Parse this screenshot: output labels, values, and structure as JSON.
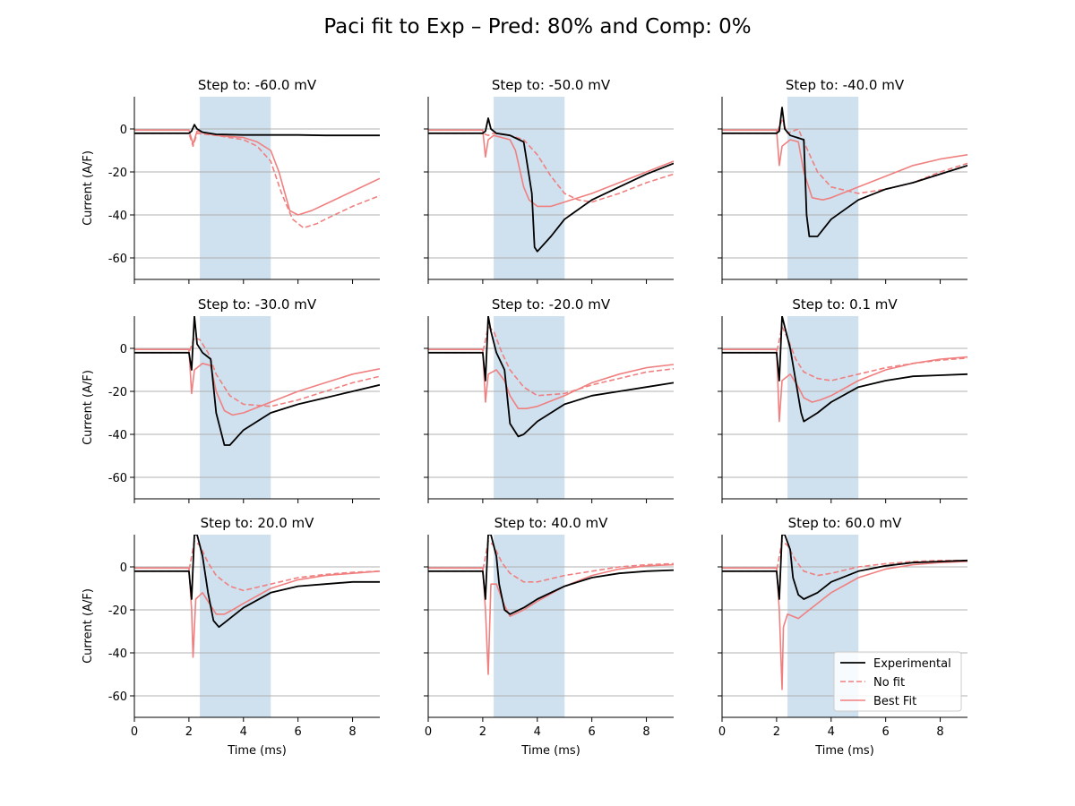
{
  "figure": {
    "title": "Paci fit to Exp – Pred: 80% and Comp: 0%"
  },
  "axes": {
    "xlabel": "Time (ms)",
    "ylabel": "Current (A/F)",
    "xlim": [
      0,
      9
    ],
    "ylim": [
      -70,
      15
    ],
    "xticks": [
      0,
      2,
      4,
      6,
      8
    ],
    "yticks": [
      0,
      -20,
      -40,
      -60
    ],
    "ygrid": true,
    "shaded_window_ms": [
      2.4,
      5.0
    ]
  },
  "legend": {
    "placement": "lower-right of last panel",
    "entries": [
      "Experimental",
      "No fit",
      "Best Fit"
    ]
  },
  "colors": {
    "experimental": "#000000",
    "model": "#f08080",
    "shade": "#cfe0ee",
    "grid": "#b0b0b0"
  },
  "chart_data": {
    "type": "line",
    "panels": [
      {
        "title": "Step to: -60.0 mV",
        "series": [
          {
            "name": "Experimental",
            "x": [
              0,
              2.0,
              2.1,
              2.2,
              2.3,
              2.5,
              3,
              4,
              5,
              6,
              7,
              8,
              9
            ],
            "y": [
              -2,
              -2,
              -1,
              2,
              0,
              -1.5,
              -2.5,
              -2.8,
              -2.8,
              -2.8,
              -3,
              -3,
              -3
            ]
          },
          {
            "name": "No fit",
            "x": [
              0,
              2.0,
              2.15,
              2.3,
              2.6,
              3,
              4,
              4.5,
              5,
              5.4,
              5.8,
              6.2,
              6.7,
              7,
              8,
              9
            ],
            "y": [
              -2,
              -2,
              -8,
              -2,
              -2.5,
              -3,
              -5,
              -8,
              -15,
              -30,
              -42,
              -46,
              -44,
              -42,
              -36,
              -31
            ]
          },
          {
            "name": "Best Fit",
            "x": [
              0,
              2.0,
              2.15,
              2.3,
              2.6,
              3,
              4,
              4.5,
              5,
              5.3,
              5.7,
              6,
              6.5,
              7,
              8,
              9
            ],
            "y": [
              -0.5,
              -0.5,
              -7,
              -1,
              -2,
              -3,
              -4,
              -6,
              -10,
              -20,
              -38,
              -40,
              -38,
              -35,
              -29,
              -23
            ]
          }
        ]
      },
      {
        "title": "Step to: -50.0 mV",
        "series": [
          {
            "name": "Experimental",
            "x": [
              0,
              2.0,
              2.1,
              2.2,
              2.3,
              2.5,
              3,
              3.5,
              3.8,
              3.9,
              4.0,
              4.5,
              5,
              6,
              7,
              8,
              9
            ],
            "y": [
              -2,
              -2,
              -1,
              5,
              0,
              -2,
              -3,
              -6,
              -30,
              -55,
              -57,
              -50,
              -42,
              -33,
              -27,
              -21,
              -16
            ]
          },
          {
            "name": "No fit",
            "x": [
              0,
              2.0,
              2.2,
              2.4,
              3,
              3.5,
              4,
              4.5,
              5,
              5.5,
              6,
              7,
              8,
              9
            ],
            "y": [
              -2,
              -2,
              -3,
              -2,
              -3,
              -5,
              -12,
              -22,
              -30,
              -33,
              -34,
              -30,
              -25,
              -21
            ]
          },
          {
            "name": "Best Fit",
            "x": [
              0,
              2.0,
              2.1,
              2.2,
              2.4,
              3,
              3.2,
              3.5,
              3.7,
              4,
              4.5,
              5,
              6,
              7,
              8,
              9
            ],
            "y": [
              -0.5,
              -0.5,
              -13,
              -5,
              -3,
              -5,
              -10,
              -27,
              -33,
              -36,
              -36,
              -34,
              -30,
              -25,
              -20,
              -15
            ]
          }
        ]
      },
      {
        "title": "Step to: -40.0 mV",
        "series": [
          {
            "name": "Experimental",
            "x": [
              0,
              2.0,
              2.1,
              2.2,
              2.3,
              2.5,
              3,
              3.1,
              3.2,
              3.5,
              4,
              5,
              6,
              7,
              8,
              9
            ],
            "y": [
              -2,
              -2,
              -1,
              10,
              0,
              -3,
              -5,
              -40,
              -50,
              -50,
              -42,
              -33,
              -28,
              -25,
              -21,
              -17
            ]
          },
          {
            "name": "No fit",
            "x": [
              0,
              2.0,
              2.2,
              2.4,
              2.8,
              3,
              3.5,
              4,
              5,
              6,
              7,
              8,
              9
            ],
            "y": [
              -2,
              -2,
              4,
              -2,
              0,
              -6,
              -20,
              -27,
              -30,
              -28,
              -25,
              -20,
              -16
            ]
          },
          {
            "name": "Best Fit",
            "x": [
              0,
              2.0,
              2.1,
              2.2,
              2.5,
              2.8,
              3,
              3.3,
              3.7,
              4,
              5,
              6,
              7,
              8,
              9
            ],
            "y": [
              -0.5,
              -0.5,
              -17,
              -8,
              -5,
              -6,
              -20,
              -32,
              -33,
              -32,
              -27,
              -22,
              -17,
              -14,
              -12
            ]
          }
        ]
      },
      {
        "title": "Step to: -30.0 mV",
        "series": [
          {
            "name": "Experimental",
            "x": [
              0,
              2.0,
              2.1,
              2.2,
              2.3,
              2.5,
              2.8,
              3,
              3.3,
              3.5,
              4,
              5,
              6,
              7,
              8,
              9
            ],
            "y": [
              -2,
              -2,
              -10,
              15,
              2,
              -2,
              -5,
              -30,
              -45,
              -45,
              -38,
              -30,
              -26,
              -23,
              -20,
              -17
            ]
          },
          {
            "name": "No fit",
            "x": [
              0,
              2.0,
              2.2,
              2.4,
              2.7,
              3,
              3.5,
              4,
              5,
              6,
              7,
              8,
              9
            ],
            "y": [
              -2,
              -2,
              5,
              4,
              -2,
              -12,
              -22,
              -26,
              -27,
              -24,
              -20,
              -16,
              -13
            ]
          },
          {
            "name": "Best Fit",
            "x": [
              0,
              2.0,
              2.1,
              2.2,
              2.5,
              2.8,
              3,
              3.3,
              3.6,
              4,
              5,
              6,
              7,
              8,
              9
            ],
            "y": [
              -0.5,
              -0.5,
              -21,
              -10,
              -7,
              -8,
              -20,
              -29,
              -31,
              -30,
              -25,
              -20,
              -16,
              -12,
              -9.5
            ]
          }
        ]
      },
      {
        "title": "Step to: -20.0 mV",
        "series": [
          {
            "name": "Experimental",
            "x": [
              0,
              2.0,
              2.1,
              2.2,
              2.3,
              2.5,
              2.8,
              3,
              3.3,
              3.5,
              4,
              5,
              6,
              7,
              8,
              9
            ],
            "y": [
              -2,
              -2,
              -15,
              15,
              8,
              -2,
              -10,
              -35,
              -41,
              -40,
              -34,
              -26,
              -22,
              -20,
              -18,
              -16
            ]
          },
          {
            "name": "No fit",
            "x": [
              0,
              2.0,
              2.2,
              2.4,
              2.7,
              3,
              3.5,
              4,
              5,
              6,
              7,
              8,
              9
            ],
            "y": [
              -2,
              -2,
              10,
              8,
              -2,
              -10,
              -18,
              -22,
              -21,
              -17,
              -14,
              -11,
              -9.5
            ]
          },
          {
            "name": "Best Fit",
            "x": [
              0,
              2.0,
              2.1,
              2.2,
              2.5,
              2.8,
              3,
              3.3,
              3.6,
              4,
              5,
              6,
              7,
              8,
              9
            ],
            "y": [
              -0.5,
              -0.5,
              -25,
              -12,
              -10,
              -15,
              -22,
              -28,
              -28,
              -27,
              -22,
              -16,
              -12,
              -9,
              -7.5
            ]
          }
        ]
      },
      {
        "title": "Step to: 0.1 mV",
        "series": [
          {
            "name": "Experimental",
            "x": [
              0,
              2.0,
              2.1,
              2.2,
              2.3,
              2.5,
              2.7,
              2.9,
              3,
              3.5,
              4,
              5,
              6,
              7,
              8,
              9
            ],
            "y": [
              -2,
              -2,
              -15,
              15,
              10,
              0,
              -15,
              -30,
              -34,
              -30,
              -25,
              -18,
              -15,
              -13,
              -12.5,
              -12
            ]
          },
          {
            "name": "No fit",
            "x": [
              0,
              2.0,
              2.2,
              2.4,
              2.7,
              3,
              3.5,
              4,
              5,
              6,
              7,
              8,
              9
            ],
            "y": [
              -2,
              -2,
              10,
              5,
              -5,
              -11,
              -14,
              -15,
              -12,
              -9,
              -7,
              -5.5,
              -4.5
            ]
          },
          {
            "name": "Best Fit",
            "x": [
              0,
              2.0,
              2.1,
              2.2,
              2.5,
              2.8,
              3,
              3.3,
              3.6,
              4,
              5,
              6,
              7,
              8,
              9
            ],
            "y": [
              -0.5,
              -0.5,
              -34,
              -15,
              -12,
              -18,
              -23,
              -25,
              -24,
              -22,
              -15,
              -10,
              -7,
              -5,
              -4
            ]
          }
        ]
      },
      {
        "title": "Step to: 20.0 mV",
        "series": [
          {
            "name": "Experimental",
            "x": [
              0,
              2.0,
              2.1,
              2.2,
              2.3,
              2.5,
              2.7,
              2.9,
              3.1,
              3.5,
              4,
              5,
              6,
              7,
              8,
              9
            ],
            "y": [
              -2,
              -2,
              -15,
              15,
              15,
              5,
              -12,
              -25,
              -28,
              -24,
              -19,
              -12,
              -9,
              -8,
              -7,
              -7
            ]
          },
          {
            "name": "No fit",
            "x": [
              0,
              2.0,
              2.2,
              2.4,
              2.7,
              3,
              3.5,
              4,
              5,
              6,
              7,
              8,
              9
            ],
            "y": [
              -2,
              -2,
              12,
              10,
              2,
              -4,
              -9,
              -11,
              -8,
              -5,
              -3.5,
              -2.5,
              -2
            ]
          },
          {
            "name": "Best Fit",
            "x": [
              0,
              2.0,
              2.1,
              2.15,
              2.25,
              2.5,
              2.8,
              3,
              3.3,
              3.6,
              4,
              5,
              6,
              7,
              8,
              9
            ],
            "y": [
              -0.5,
              -0.5,
              -20,
              -42,
              -15,
              -12,
              -18,
              -22,
              -22,
              -20,
              -17,
              -10,
              -6,
              -4,
              -3,
              -2
            ]
          }
        ]
      },
      {
        "title": "Step to: 40.0 mV",
        "series": [
          {
            "name": "Experimental",
            "x": [
              0,
              2.0,
              2.1,
              2.2,
              2.3,
              2.5,
              2.6,
              2.8,
              3,
              3.5,
              4,
              5,
              6,
              7,
              8,
              9
            ],
            "y": [
              -2,
              -2,
              -15,
              15,
              15,
              5,
              -8,
              -20,
              -22,
              -19,
              -15,
              -9,
              -5,
              -3,
              -2,
              -1.5
            ]
          },
          {
            "name": "No fit",
            "x": [
              0,
              2.0,
              2.2,
              2.4,
              2.7,
              3,
              3.5,
              4,
              5,
              6,
              7,
              8,
              9
            ],
            "y": [
              -2,
              -2,
              12,
              10,
              2,
              -3,
              -7,
              -7,
              -4,
              -2,
              0,
              1,
              1.5
            ]
          },
          {
            "name": "Best Fit",
            "x": [
              0,
              2.0,
              2.1,
              2.2,
              2.3,
              2.5,
              2.8,
              3,
              3.5,
              4,
              5,
              6,
              7,
              8,
              9
            ],
            "y": [
              -0.5,
              -0.5,
              -20,
              -50,
              -8,
              -8,
              -18,
              -23,
              -20,
              -16,
              -9,
              -4,
              -1,
              0.5,
              1
            ]
          }
        ]
      },
      {
        "title": "Step to: 60.0 mV",
        "series": [
          {
            "name": "Experimental",
            "x": [
              0,
              2.0,
              2.1,
              2.2,
              2.3,
              2.5,
              2.6,
              2.8,
              3,
              3.5,
              4,
              5,
              6,
              7,
              8,
              9
            ],
            "y": [
              -2,
              -2,
              -15,
              15,
              15,
              8,
              -5,
              -13,
              -15,
              -12,
              -7,
              -2,
              0.5,
              2,
              2.5,
              3
            ]
          },
          {
            "name": "No fit",
            "x": [
              0,
              2.0,
              2.2,
              2.4,
              2.7,
              3,
              3.5,
              4,
              5,
              6,
              7,
              8,
              9
            ],
            "y": [
              -2,
              -2,
              12,
              10,
              3,
              -2,
              -4,
              -3,
              0,
              1.5,
              2.5,
              3,
              3
            ]
          },
          {
            "name": "Best Fit",
            "x": [
              0,
              2.0,
              2.1,
              2.2,
              2.25,
              2.4,
              2.8,
              3,
              3.5,
              4,
              5,
              6,
              7,
              8,
              9
            ],
            "y": [
              -0.5,
              -0.5,
              -20,
              -57,
              -28,
              -22,
              -24,
              -22,
              -17,
              -12,
              -5,
              -1,
              1,
              2,
              2.5
            ]
          }
        ]
      }
    ]
  }
}
